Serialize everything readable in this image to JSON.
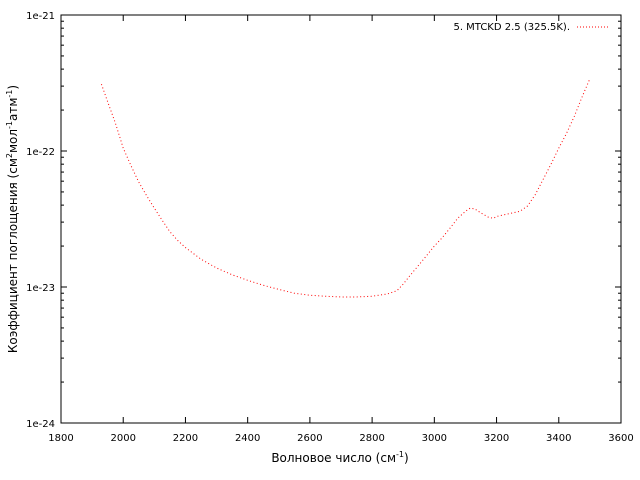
{
  "chart_data": {
    "type": "line",
    "title": "",
    "xlabel": "Волновое число (см",
    "xlabel_sup": "-1",
    "xlabel_end": ")",
    "ylabel_parts": [
      "Коэффициент поглощения (см",
      "2",
      "мол",
      "-1",
      "атм",
      "-1",
      ")"
    ],
    "xlim": [
      1800,
      3600
    ],
    "ylim": [
      1e-24,
      1e-21
    ],
    "yscale": "log",
    "xticks": [
      1800,
      2000,
      2200,
      2400,
      2600,
      2800,
      3000,
      3200,
      3400,
      3600
    ],
    "xtick_labels": [
      "1800",
      "2000",
      "2200",
      "2400",
      "2600",
      "2800",
      "3000",
      "3200",
      "3400",
      "3600"
    ],
    "yticks": [
      1e-24,
      1e-23,
      1e-22,
      1e-21
    ],
    "ytick_labels": [
      "1e-24",
      "1e-23",
      "1e-22",
      "1e-21"
    ],
    "grid": false,
    "legend_position": "top-right",
    "series": [
      {
        "name": "5. MTCKD 2.5 (325.5K).",
        "color": "#ff0000",
        "line_style": "dotted",
        "x": [
          1930,
          1950,
          1975,
          2000,
          2025,
          2050,
          2075,
          2100,
          2125,
          2150,
          2175,
          2200,
          2250,
          2300,
          2350,
          2400,
          2450,
          2500,
          2550,
          2600,
          2650,
          2700,
          2750,
          2800,
          2850,
          2880,
          2900,
          2920,
          2950,
          2975,
          3000,
          3025,
          3050,
          3075,
          3100,
          3115,
          3130,
          3150,
          3175,
          3190,
          3200,
          3225,
          3250,
          3275,
          3300,
          3325,
          3350,
          3375,
          3400,
          3425,
          3450,
          3475,
          3500
        ],
        "y": [
          3.1e-22,
          2.3e-22,
          1.6e-22,
          1.05e-22,
          7.8e-23,
          5.9e-23,
          4.7e-23,
          3.8e-23,
          3.1e-23,
          2.55e-23,
          2.2e-23,
          1.95e-23,
          1.6e-23,
          1.38e-23,
          1.23e-23,
          1.12e-23,
          1.03e-23,
          9.6e-24,
          9e-24,
          8.7e-24,
          8.55e-24,
          8.45e-24,
          8.45e-24,
          8.55e-24,
          8.9e-24,
          9.4e-24,
          1.05e-23,
          1.2e-23,
          1.45e-23,
          1.7e-23,
          2e-23,
          2.3e-23,
          2.7e-23,
          3.2e-23,
          3.6e-23,
          3.8e-23,
          3.75e-23,
          3.5e-23,
          3.25e-23,
          3.2e-23,
          3.3e-23,
          3.4e-23,
          3.5e-23,
          3.6e-23,
          3.95e-23,
          4.8e-23,
          6.2e-23,
          8e-23,
          1.05e-22,
          1.35e-22,
          1.8e-22,
          2.5e-22,
          3.4e-22
        ]
      }
    ]
  }
}
